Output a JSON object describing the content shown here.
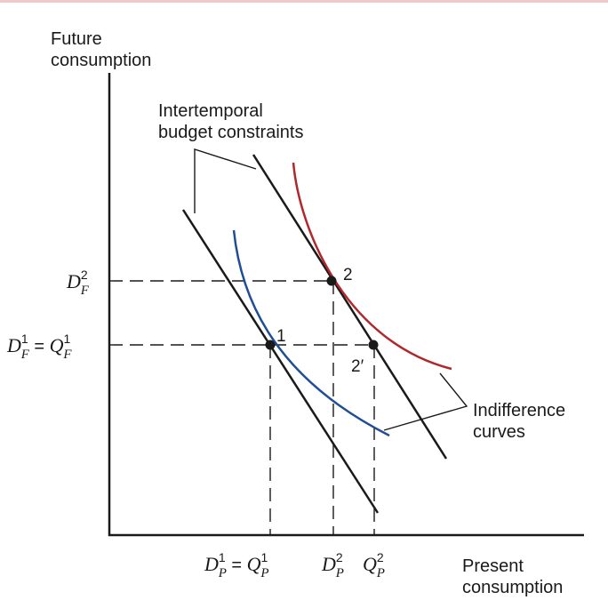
{
  "axes": {
    "y_label": [
      "Future",
      "consumption"
    ],
    "x_label": [
      "Present",
      "consumption"
    ]
  },
  "annotations": {
    "budget": [
      "Intertemporal",
      "budget constraints"
    ],
    "indiff": [
      "Indifference",
      "curves"
    ]
  },
  "points": {
    "p1": "1",
    "p2": "2",
    "p2prime": "2′"
  },
  "ticks": {
    "y": {
      "df2": {
        "base": "D",
        "sup": "2",
        "sub": "F"
      },
      "df1_qf1": {
        "left": {
          "base": "D",
          "sup": "1",
          "sub": "F"
        },
        "eq": " = ",
        "right": {
          "base": "Q",
          "sup": "1",
          "sub": "F"
        }
      }
    },
    "x": {
      "dp1_qp1": {
        "left": {
          "base": "D",
          "sup": "1",
          "sub": "P"
        },
        "eq": " = ",
        "right": {
          "base": "Q",
          "sup": "1",
          "sub": "P"
        }
      },
      "dp2": {
        "base": "D",
        "sup": "2",
        "sub": "P"
      },
      "qp2": {
        "base": "Q",
        "sup": "2",
        "sub": "P"
      }
    }
  },
  "colors": {
    "axis": "#1a1a1a",
    "budget_line": "#1a1a1a",
    "indiff_low": "#1f4e96",
    "indiff_high": "#b0282b",
    "guide": "#1a1a1a"
  }
}
